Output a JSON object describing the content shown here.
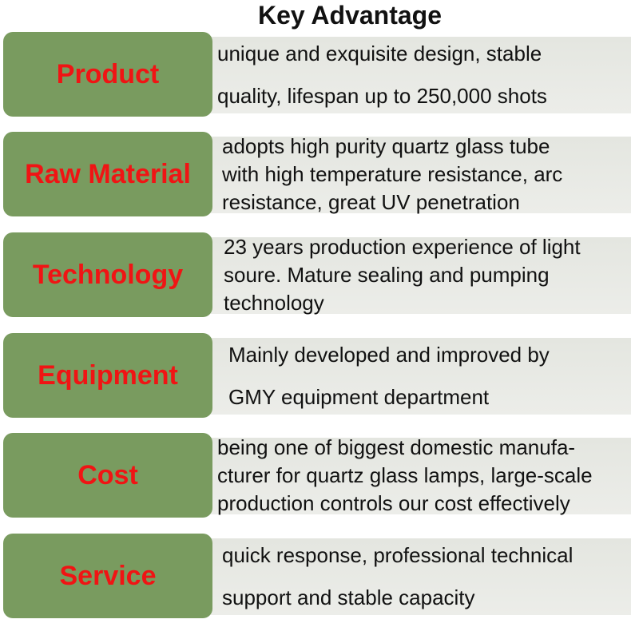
{
  "title": "Key Advantage",
  "colors": {
    "label_bg": "#799b5f",
    "label_text": "#f01414",
    "panel_bg": "#e6e8e2"
  },
  "rows": [
    {
      "label": "Product",
      "lines": [
        "unique and exquisite design, stable",
        "quality, lifespan up to 250,000 shots"
      ]
    },
    {
      "label": "Raw Material",
      "lines": [
        "adopts high purity quartz glass tube",
        "with high temperature resistance, arc",
        "resistance, great UV penetration"
      ]
    },
    {
      "label": "Technology",
      "lines": [
        "23 years production experience of light",
        "soure. Mature sealing and pumping",
        "technology"
      ]
    },
    {
      "label": "Equipment",
      "lines": [
        "Mainly developed and improved by",
        "GMY equipment department"
      ]
    },
    {
      "label": "Cost",
      "lines": [
        "being one of biggest domestic manufa-",
        "cturer for quartz glass lamps, large-scale",
        "production controls our cost effectively"
      ]
    },
    {
      "label": "Service",
      "lines": [
        "quick response, professional technical",
        "support and stable capacity"
      ]
    }
  ]
}
